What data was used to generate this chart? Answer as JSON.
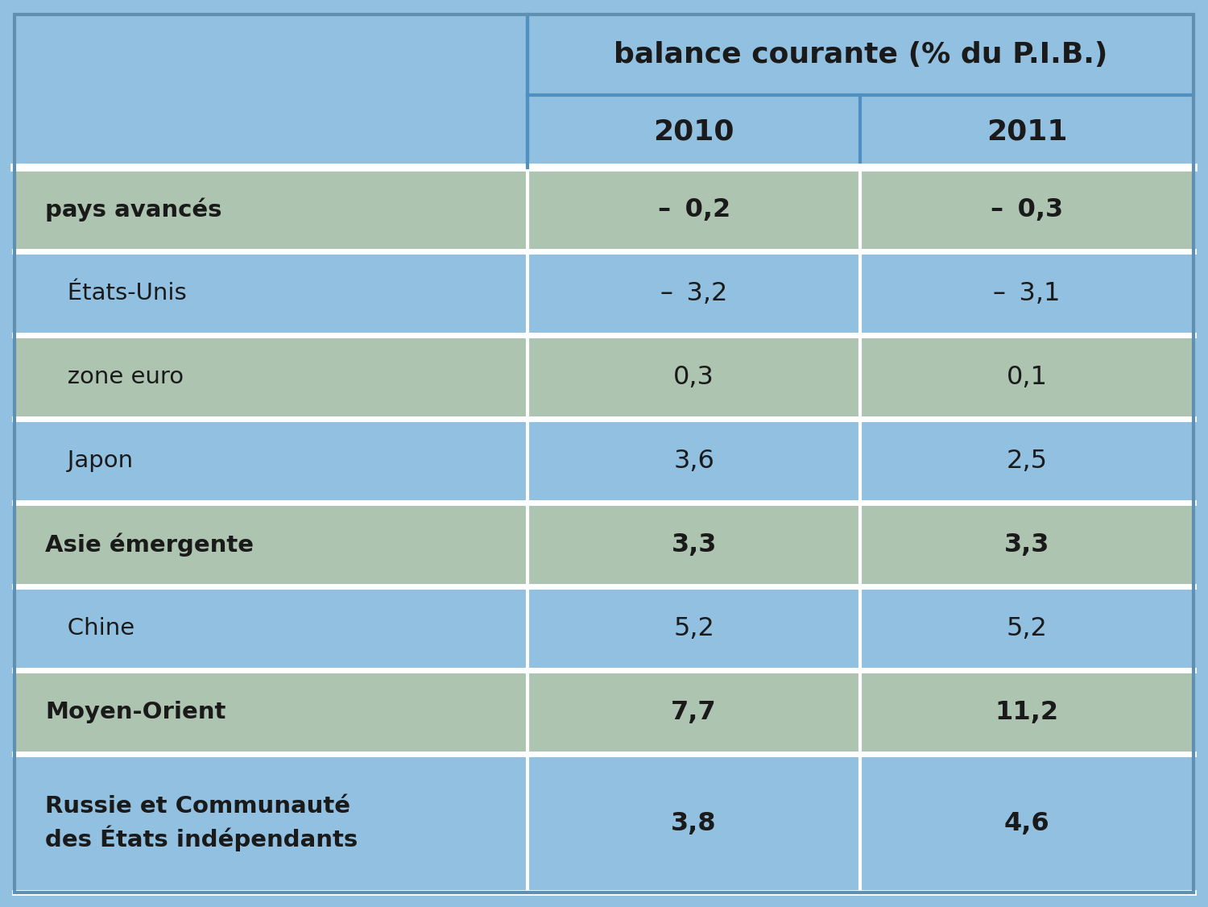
{
  "title": "balance courante (% du P.I.B.)",
  "col_headers": [
    "2010",
    "2011"
  ],
  "rows": [
    {
      "label": "pays avancés",
      "val2010": "–  0,2",
      "val2011": "–  0,3",
      "bold": true,
      "bg": "green"
    },
    {
      "label": "   États-Unis",
      "val2010": "–  3,2",
      "val2011": "–  3,1",
      "bold": false,
      "bg": "blue"
    },
    {
      "label": "   zone euro",
      "val2010": "0,3",
      "val2011": "0,1",
      "bold": false,
      "bg": "green"
    },
    {
      "label": "   Japon",
      "val2010": "3,6",
      "val2011": "2,5",
      "bold": false,
      "bg": "blue"
    },
    {
      "label": "Asie émergente",
      "val2010": "3,3",
      "val2011": "3,3",
      "bold": true,
      "bg": "green"
    },
    {
      "label": "   Chine",
      "val2010": "5,2",
      "val2011": "5,2",
      "bold": false,
      "bg": "blue"
    },
    {
      "label": "Moyen-Orient",
      "val2010": "7,7",
      "val2011": "11,2",
      "bold": true,
      "bg": "green"
    },
    {
      "label": "Russie et Communauté\ndes États indépendants",
      "val2010": "3,8",
      "val2011": "4,6",
      "bold": true,
      "bg": "blue"
    }
  ],
  "bg_blue": "#92c0e0",
  "bg_green": "#adc4b0",
  "bg_header": "#92c0e0",
  "white_sep": "#ffffff",
  "dark_sep": "#5090c0",
  "text_color": "#1a1a1a",
  "outer_border": "#6090b0",
  "fig_bg": "#92c0e0"
}
